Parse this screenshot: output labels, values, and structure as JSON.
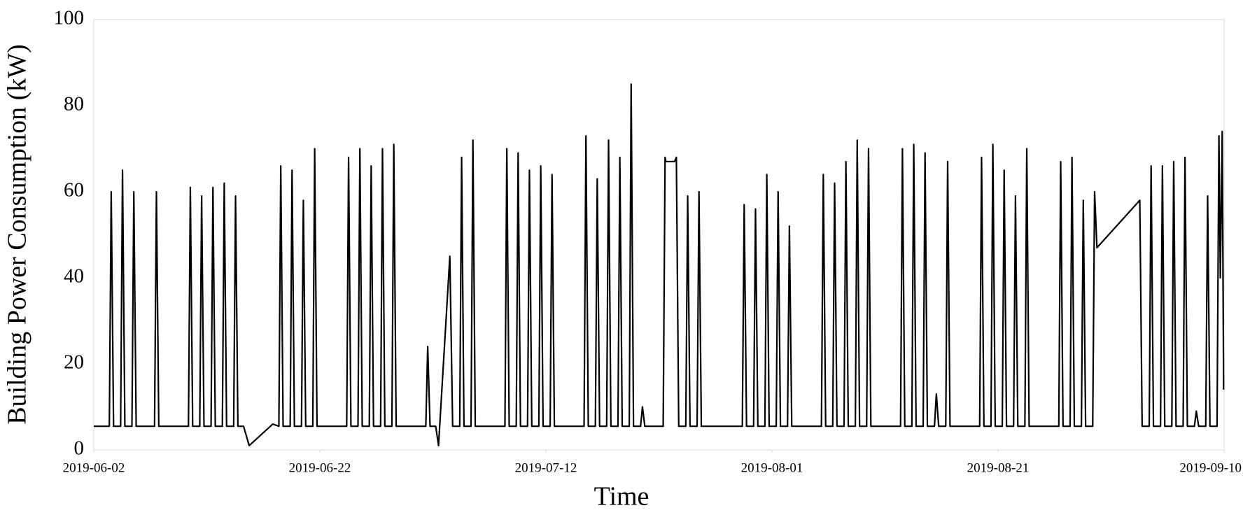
{
  "chart_data": {
    "type": "line",
    "x_label": "Time",
    "y_label": "Building Power Consumption (kW)",
    "color": "#000000",
    "xlim": [
      "2019-06-02",
      "2019-09-10"
    ],
    "xticks": [
      "2019-06-02",
      "2019-06-22",
      "2019-07-12",
      "2019-08-01",
      "2019-08-21",
      "2019-09-10"
    ],
    "ylim": [
      0,
      100
    ],
    "yticks": [
      0,
      20,
      40,
      60,
      80,
      100
    ],
    "grid": false,
    "x": [
      "2019-06-02 00:00",
      "2019-06-03 09:00",
      "2019-06-03 13:00",
      "2019-06-03 18:00",
      "2019-06-04 09:00",
      "2019-06-04 13:00",
      "2019-06-04 18:00",
      "2019-06-05 09:00",
      "2019-06-05 13:00",
      "2019-06-05 18:00",
      "2019-06-07 09:00",
      "2019-06-07 13:00",
      "2019-06-07 18:00",
      "2019-06-10 09:00",
      "2019-06-10 13:00",
      "2019-06-10 18:00",
      "2019-06-11 09:00",
      "2019-06-11 13:00",
      "2019-06-11 18:00",
      "2019-06-12 09:00",
      "2019-06-12 13:00",
      "2019-06-12 18:00",
      "2019-06-13 09:00",
      "2019-06-13 13:00",
      "2019-06-13 18:00",
      "2019-06-14 09:00",
      "2019-06-14 13:00",
      "2019-06-14 18:00",
      "2019-06-15 06:00",
      "2019-06-15 18:00",
      "2019-06-17 20:00",
      "2019-06-18 09:00",
      "2019-06-18 13:00",
      "2019-06-18 18:00",
      "2019-06-19 09:00",
      "2019-06-19 13:00",
      "2019-06-19 18:00",
      "2019-06-20 09:00",
      "2019-06-20 13:00",
      "2019-06-20 18:00",
      "2019-06-21 09:00",
      "2019-06-21 13:00",
      "2019-06-21 18:00",
      "2019-06-24 09:00",
      "2019-06-24 13:00",
      "2019-06-24 18:00",
      "2019-06-25 09:00",
      "2019-06-25 13:00",
      "2019-06-25 18:00",
      "2019-06-26 09:00",
      "2019-06-26 13:00",
      "2019-06-26 18:00",
      "2019-06-27 09:00",
      "2019-06-27 13:00",
      "2019-06-27 18:00",
      "2019-06-28 09:00",
      "2019-06-28 13:00",
      "2019-06-28 18:00",
      "2019-07-01 09:00",
      "2019-07-01 13:00",
      "2019-07-01 18:00",
      "2019-07-02 06:00",
      "2019-07-02 12:00",
      "2019-07-03 12:00",
      "2019-07-03 18:00",
      "2019-07-04 09:00",
      "2019-07-04 13:00",
      "2019-07-04 18:00",
      "2019-07-05 09:00",
      "2019-07-05 13:00",
      "2019-07-05 18:00",
      "2019-07-08 09:00",
      "2019-07-08 13:00",
      "2019-07-08 18:00",
      "2019-07-09 09:00",
      "2019-07-09 13:00",
      "2019-07-09 18:00",
      "2019-07-10 09:00",
      "2019-07-10 13:00",
      "2019-07-10 18:00",
      "2019-07-11 09:00",
      "2019-07-11 13:00",
      "2019-07-11 18:00",
      "2019-07-12 09:00",
      "2019-07-12 13:00",
      "2019-07-12 18:00",
      "2019-07-15 09:00",
      "2019-07-15 13:00",
      "2019-07-15 18:00",
      "2019-07-16 09:00",
      "2019-07-16 13:00",
      "2019-07-16 18:00",
      "2019-07-17 09:00",
      "2019-07-17 13:00",
      "2019-07-17 18:00",
      "2019-07-18 09:00",
      "2019-07-18 13:00",
      "2019-07-18 18:00",
      "2019-07-19 09:00",
      "2019-07-19 13:00",
      "2019-07-19 18:00",
      "2019-07-20 09:00",
      "2019-07-20 13:00",
      "2019-07-20 18:00",
      "2019-07-22 09:00",
      "2019-07-22 13:00",
      "2019-07-22 15:00",
      "2019-07-23 09:00",
      "2019-07-23 13:00",
      "2019-07-23 18:00",
      "2019-07-24 09:00",
      "2019-07-24 13:00",
      "2019-07-24 18:00",
      "2019-07-25 09:00",
      "2019-07-25 13:00",
      "2019-07-25 18:00",
      "2019-07-29 09:00",
      "2019-07-29 13:00",
      "2019-07-29 18:00",
      "2019-07-30 09:00",
      "2019-07-30 13:00",
      "2019-07-30 18:00",
      "2019-07-31 09:00",
      "2019-07-31 13:00",
      "2019-07-31 18:00",
      "2019-08-01 09:00",
      "2019-08-01 13:00",
      "2019-08-01 18:00",
      "2019-08-02 09:00",
      "2019-08-02 13:00",
      "2019-08-02 18:00",
      "2019-08-05 09:00",
      "2019-08-05 13:00",
      "2019-08-05 18:00",
      "2019-08-06 09:00",
      "2019-08-06 13:00",
      "2019-08-06 18:00",
      "2019-08-07 09:00",
      "2019-08-07 13:00",
      "2019-08-07 18:00",
      "2019-08-08 09:00",
      "2019-08-08 13:00",
      "2019-08-08 18:00",
      "2019-08-09 09:00",
      "2019-08-09 13:00",
      "2019-08-09 18:00",
      "2019-08-12 09:00",
      "2019-08-12 13:00",
      "2019-08-12 18:00",
      "2019-08-13 09:00",
      "2019-08-13 13:00",
      "2019-08-13 18:00",
      "2019-08-14 09:00",
      "2019-08-14 13:00",
      "2019-08-14 18:00",
      "2019-08-15 09:00",
      "2019-08-15 13:00",
      "2019-08-15 18:00",
      "2019-08-16 09:00",
      "2019-08-16 13:00",
      "2019-08-16 18:00",
      "2019-08-19 09:00",
      "2019-08-19 13:00",
      "2019-08-19 18:00",
      "2019-08-20 09:00",
      "2019-08-20 13:00",
      "2019-08-20 18:00",
      "2019-08-21 09:00",
      "2019-08-21 13:00",
      "2019-08-21 18:00",
      "2019-08-22 09:00",
      "2019-08-22 13:00",
      "2019-08-22 18:00",
      "2019-08-23 09:00",
      "2019-08-23 13:00",
      "2019-08-23 18:00",
      "2019-08-26 09:00",
      "2019-08-26 13:00",
      "2019-08-26 18:00",
      "2019-08-27 09:00",
      "2019-08-27 13:00",
      "2019-08-27 18:00",
      "2019-08-28 09:00",
      "2019-08-28 13:00",
      "2019-08-28 18:00",
      "2019-08-29 09:00",
      "2019-08-29 13:00",
      "2019-08-29 18:00",
      "2019-09-02 13:00",
      "2019-09-02 18:00",
      "2019-09-03 09:00",
      "2019-09-03 13:00",
      "2019-09-03 18:00",
      "2019-09-04 09:00",
      "2019-09-04 13:00",
      "2019-09-04 18:00",
      "2019-09-05 09:00",
      "2019-09-05 13:00",
      "2019-09-05 18:00",
      "2019-09-06 09:00",
      "2019-09-06 13:00",
      "2019-09-06 18:00",
      "2019-09-07 09:00",
      "2019-09-07 13:00",
      "2019-09-07 18:00",
      "2019-09-08 09:00",
      "2019-09-08 13:00",
      "2019-09-08 18:00",
      "2019-09-09 09:00",
      "2019-09-09 13:00",
      "2019-09-09 16:00",
      "2019-09-09 20:00",
      "2019-09-09 23:00"
    ],
    "values": [
      5.5,
      5.5,
      60,
      5.5,
      5.5,
      65,
      5.5,
      5.5,
      60,
      5.5,
      5.5,
      60,
      5.5,
      5.5,
      61,
      5.5,
      5.5,
      59,
      5.5,
      5.5,
      61,
      5.5,
      5.5,
      62,
      5.5,
      5.5,
      59,
      5.5,
      5.5,
      1,
      6,
      5.5,
      66,
      5.5,
      5.5,
      65,
      5.5,
      5.5,
      58,
      5.5,
      5.5,
      70,
      5.5,
      5.5,
      68,
      5.5,
      5.5,
      70,
      5.5,
      5.5,
      66,
      5.5,
      5.5,
      70,
      5.5,
      5.5,
      71,
      5.5,
      5.5,
      24,
      5.5,
      5.5,
      1,
      45,
      5.5,
      5.5,
      68,
      5.5,
      5.5,
      72,
      5.5,
      5.5,
      70,
      5.5,
      5.5,
      69,
      5.5,
      5.5,
      65,
      5.5,
      5.5,
      66,
      5.5,
      5.5,
      64,
      5.5,
      5.5,
      73,
      5.5,
      5.5,
      63,
      5.5,
      5.5,
      72,
      5.5,
      5.5,
      68,
      5.5,
      5.5,
      85,
      5.5,
      5.5,
      10,
      5.5,
      5.5,
      68,
      67,
      67,
      68,
      5.5,
      5.5,
      59,
      5.5,
      5.5,
      60,
      5.5,
      5.5,
      57,
      5.5,
      5.5,
      56,
      5.5,
      5.5,
      64,
      5.5,
      5.5,
      60,
      5.5,
      5.5,
      52,
      5.5,
      5.5,
      64,
      5.5,
      5.5,
      62,
      5.5,
      5.5,
      67,
      5.5,
      5.5,
      72,
      5.5,
      5.5,
      70,
      5.5,
      5.5,
      70,
      5.5,
      5.5,
      71,
      5.5,
      5.5,
      69,
      5.5,
      5.5,
      13,
      5.5,
      5.5,
      67,
      5.5,
      5.5,
      68,
      5.5,
      5.5,
      71,
      5.5,
      5.5,
      65,
      5.5,
      5.5,
      59,
      5.5,
      5.5,
      70,
      5.5,
      5.5,
      67,
      5.5,
      5.5,
      68,
      5.5,
      5.5,
      58,
      5.5,
      5.5,
      60,
      47,
      58,
      5.5,
      5.5,
      66,
      5.5,
      5.5,
      66,
      5.5,
      5.5,
      67,
      5.5,
      5.5,
      68,
      5.5,
      5.5,
      9,
      5.5,
      5.5,
      59,
      5.5,
      5.5,
      73,
      40,
      74,
      14
    ]
  }
}
